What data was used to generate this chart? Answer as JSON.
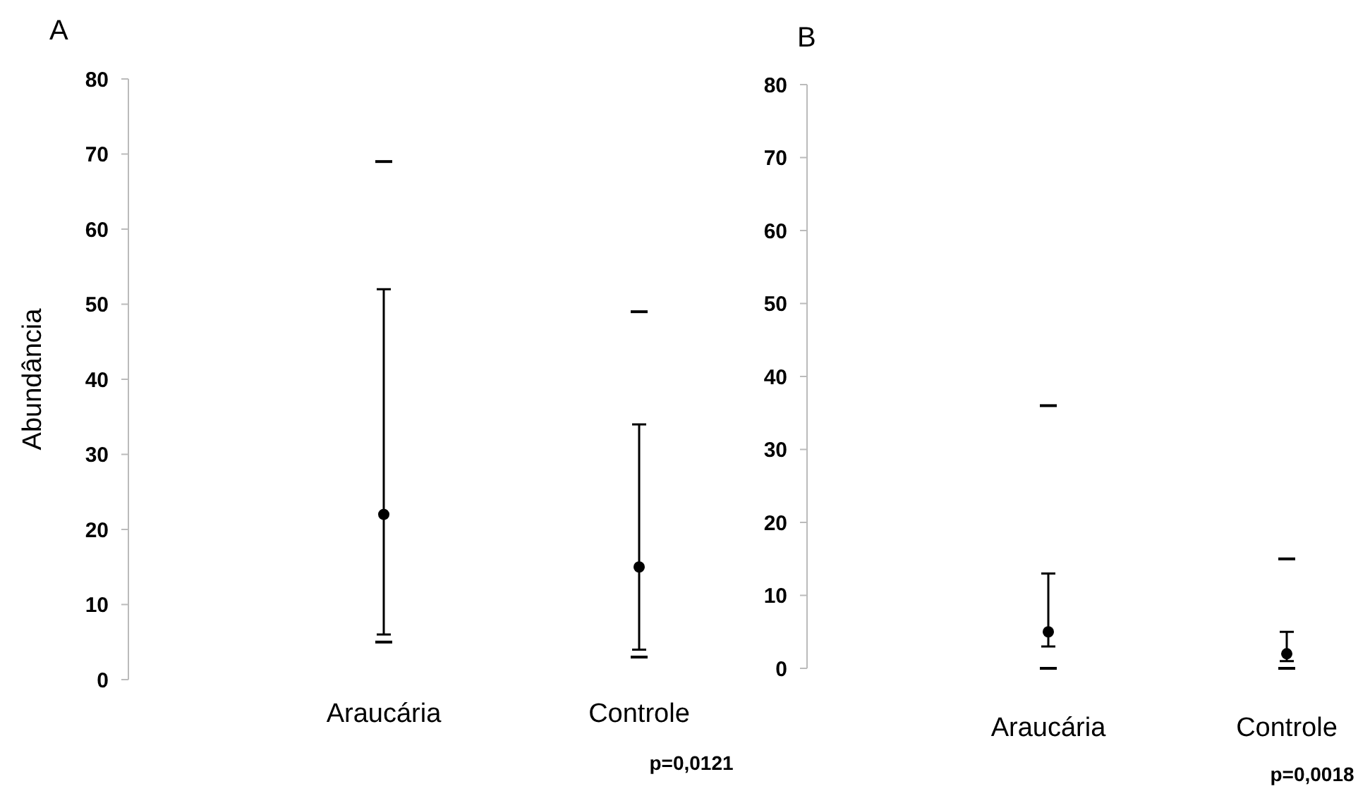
{
  "chart_data": [
    {
      "type": "scatter",
      "title": "A",
      "ylabel": "Abundância",
      "categories": [
        "Araucária",
        "Controle"
      ],
      "ylim": [
        0,
        80
      ],
      "yticks": [
        0,
        10,
        20,
        30,
        40,
        50,
        60,
        70,
        80
      ],
      "grid": false,
      "legend": false,
      "series": [
        {
          "color": "#000000",
          "marker": "circle",
          "values": [
            22,
            15
          ],
          "errors": [
            [
              6,
              52
            ],
            [
              4,
              34
            ]
          ]
        },
        {
          "color": "#000000",
          "values": [
            69,
            49
          ]
        },
        {
          "color": "#000000",
          "values": [
            5,
            3
          ]
        }
      ],
      "annotations": [
        "p=0,0121"
      ]
    },
    {
      "type": "scatter",
      "title": "B",
      "categories": [
        "Araucária",
        "Controle"
      ],
      "ylim": [
        0,
        80
      ],
      "yticks": [
        0,
        10,
        20,
        30,
        40,
        50,
        60,
        70,
        80
      ],
      "grid": false,
      "legend": false,
      "series": [
        {
          "color": "#000000",
          "marker": "circle",
          "values": [
            5,
            2
          ],
          "errors": [
            [
              3,
              13
            ],
            [
              1,
              5
            ]
          ]
        },
        {
          "color": "#000000",
          "values": [
            36,
            15
          ]
        },
        {
          "color": "#000000",
          "values": [
            0,
            0
          ]
        }
      ],
      "annotations": [
        "p=0,0018"
      ]
    }
  ]
}
